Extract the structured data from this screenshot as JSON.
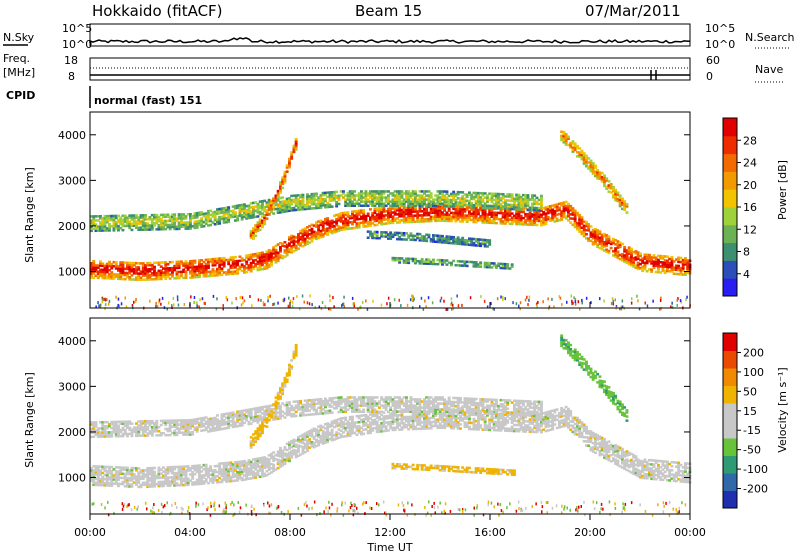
{
  "header": {
    "station": "Hokkaido (fitACF)",
    "beam": "Beam 15",
    "date": "07/Mar/2011"
  },
  "strips": {
    "nsky_label": "N.Sky",
    "nsearch_label": "N.Search",
    "nsky_ticks": [
      "10^5",
      "10^0"
    ],
    "nsearch_ticks": [
      "10^5",
      "10^0"
    ],
    "freq_label_1": "Freq.",
    "freq_label_2": "[MHz]",
    "freq_ticks": [
      "18",
      "8"
    ],
    "nave_label": "Nave",
    "nave_ticks": [
      "60",
      "0"
    ],
    "cpid_label": "CPID",
    "cpid_value": "normal (fast) 151"
  },
  "chart_data": [
    {
      "type": "heatmap",
      "title": "",
      "xlabel": "Time UT",
      "ylabel": "Slant Range [km]",
      "x_ticks": [
        "00:00",
        "04:00",
        "08:00",
        "12:00",
        "16:00",
        "20:00",
        "00:00"
      ],
      "x_range_hours": [
        0,
        24
      ],
      "y_ticks": [
        1000,
        2000,
        3000,
        4000
      ],
      "ylim": [
        200,
        4500
      ],
      "colorbar": {
        "label": "Power [dB]",
        "ticks": [
          "28",
          "24",
          "20",
          "16",
          "12",
          "8",
          "4"
        ],
        "colors": [
          "#2a1ef0",
          "#2a4fb8",
          "#3c8f6f",
          "#6bb255",
          "#9fd23a",
          "#f2c300",
          "#f29b00",
          "#f26a00",
          "#ee2c00",
          "#e00000"
        ]
      },
      "bands": [
        {
          "name": "main echo",
          "range_km_by_hour": [
            [
              0,
              1050
            ],
            [
              2,
              1000
            ],
            [
              4,
              1050
            ],
            [
              6,
              1150
            ],
            [
              7,
              1250
            ],
            [
              8,
              1600
            ],
            [
              9,
              1900
            ],
            [
              10,
              2100
            ],
            [
              12,
              2250
            ],
            [
              14,
              2300
            ],
            [
              16,
              2250
            ],
            [
              18,
              2200
            ],
            [
              19,
              2350
            ],
            [
              20,
              1800
            ],
            [
              22,
              1200
            ],
            [
              24,
              1100
            ]
          ],
          "width_km": 400,
          "level": 0.9
        },
        {
          "name": "upper layer",
          "range_km_by_hour": [
            [
              0,
              2050
            ],
            [
              4,
              2100
            ],
            [
              8,
              2500
            ],
            [
              10,
              2600
            ],
            [
              12,
              2600
            ],
            [
              14,
              2600
            ],
            [
              16,
              2550
            ],
            [
              18,
              2500
            ]
          ],
          "width_km": 350,
          "level": 0.45
        },
        {
          "name": "rising branch",
          "range_km_by_hour": [
            [
              6.3,
              1700
            ],
            [
              7,
              2200
            ],
            [
              7.7,
              3000
            ],
            [
              8.2,
              3800
            ]
          ],
          "width_km": 250,
          "level": 0.8
        },
        {
          "name": "late branch",
          "range_km_by_hour": [
            [
              18.8,
              4000
            ],
            [
              19.5,
              3600
            ],
            [
              20.5,
              3000
            ],
            [
              21.5,
              2300
            ]
          ],
          "width_km": 250,
          "level": 0.7
        },
        {
          "name": "lower patch",
          "range_km_by_hour": [
            [
              11,
              1800
            ],
            [
              13,
              1750
            ],
            [
              16,
              1600
            ]
          ],
          "width_km": 150,
          "level": 0.3
        },
        {
          "name": "low patch",
          "range_km_by_hour": [
            [
              12,
              1250
            ],
            [
              14,
              1200
            ],
            [
              17,
              1100
            ]
          ],
          "width_km": 120,
          "level": 0.35
        }
      ]
    },
    {
      "type": "heatmap",
      "title": "",
      "xlabel": "Time UT",
      "ylabel": "Slant Range [km]",
      "x_ticks": [
        "00:00",
        "04:00",
        "08:00",
        "12:00",
        "16:00",
        "20:00",
        "00:00"
      ],
      "x_range_hours": [
        0,
        24
      ],
      "y_ticks": [
        1000,
        2000,
        3000,
        4000
      ],
      "ylim": [
        200,
        4500
      ],
      "colorbar": {
        "label": "Velocity [m s⁻¹]",
        "ticks": [
          "200",
          "100",
          "50",
          "15",
          "-15",
          "-50",
          "-100",
          "-200"
        ],
        "colors": [
          "#1f2fb0",
          "#2f69a9",
          "#2f9b74",
          "#67c33a",
          "#c8c8c8",
          "#c8c8c8",
          "#f0b400",
          "#f08a00",
          "#ea4a00",
          "#e00000"
        ]
      },
      "bands": [
        {
          "name": "main echo",
          "range_km_by_hour": [
            [
              0,
              1050
            ],
            [
              2,
              1000
            ],
            [
              4,
              1050
            ],
            [
              6,
              1150
            ],
            [
              7,
              1250
            ],
            [
              8,
              1600
            ],
            [
              9,
              1900
            ],
            [
              10,
              2100
            ],
            [
              12,
              2250
            ],
            [
              14,
              2300
            ],
            [
              16,
              2250
            ],
            [
              18,
              2200
            ],
            [
              19,
              2350
            ],
            [
              20,
              1800
            ],
            [
              22,
              1200
            ],
            [
              24,
              1100
            ]
          ],
          "width_km": 450,
          "class": "gray"
        },
        {
          "name": "upper layer",
          "range_km_by_hour": [
            [
              0,
              2050
            ],
            [
              4,
              2100
            ],
            [
              8,
              2500
            ],
            [
              10,
              2600
            ],
            [
              12,
              2600
            ],
            [
              14,
              2600
            ],
            [
              16,
              2550
            ],
            [
              18,
              2500
            ]
          ],
          "width_km": 350,
          "class": "gray"
        },
        {
          "name": "rising branch",
          "range_km_by_hour": [
            [
              6.3,
              1700
            ],
            [
              7,
              2200
            ],
            [
              7.7,
              3000
            ],
            [
              8.2,
              3800
            ]
          ],
          "width_km": 250,
          "class": "orange"
        },
        {
          "name": "late branch",
          "range_km_by_hour": [
            [
              18.8,
              4000
            ],
            [
              19.5,
              3600
            ],
            [
              20.5,
              3000
            ],
            [
              21.5,
              2300
            ]
          ],
          "width_km": 250,
          "class": "green"
        },
        {
          "name": "low patch",
          "range_km_by_hour": [
            [
              12,
              1250
            ],
            [
              14,
              1200
            ],
            [
              17,
              1100
            ]
          ],
          "width_km": 120,
          "class": "orange"
        }
      ]
    }
  ]
}
